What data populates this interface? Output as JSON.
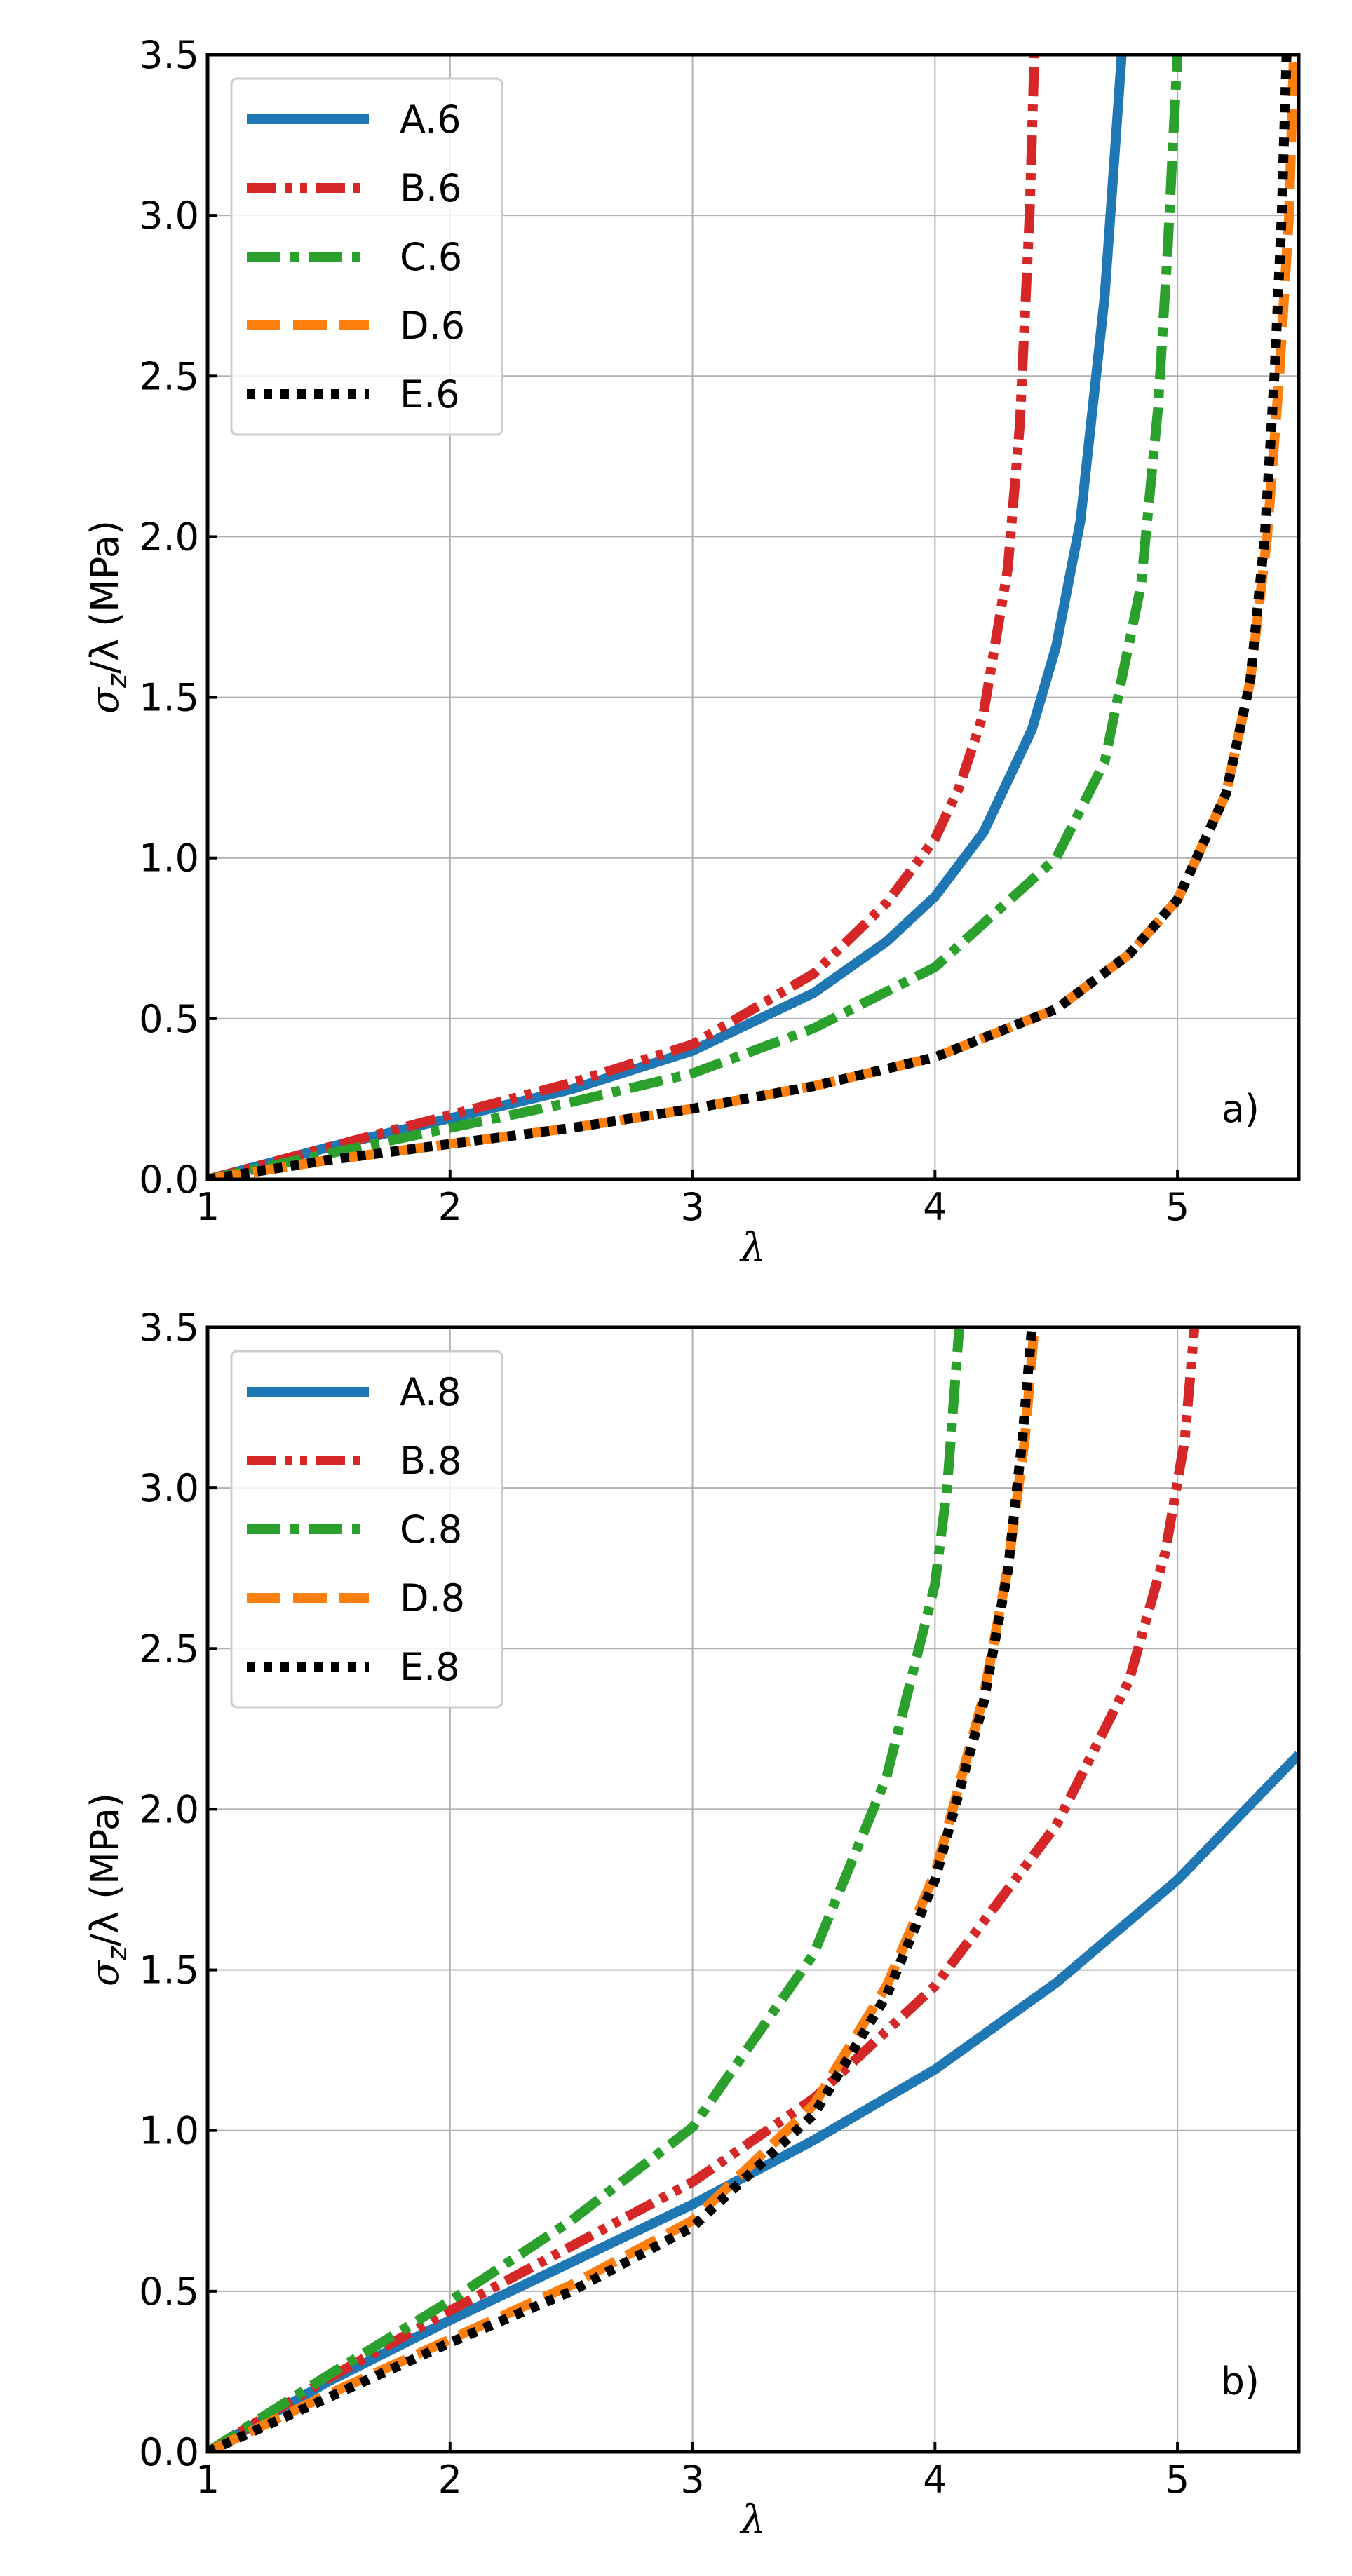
{
  "chart_data": [
    {
      "type": "line",
      "panel_label": "a)",
      "xlabel": "λ",
      "ylabel": "σ_z/λ (MPa)",
      "ylabel_parts": {
        "sigma": "σ",
        "sub": "z",
        "rest": "/λ (MPa)"
      },
      "xlim": [
        1,
        5.5
      ],
      "ylim": [
        0,
        3.5
      ],
      "xticks": [
        "1",
        "2",
        "3",
        "4",
        "5"
      ],
      "xtick_values": [
        1,
        2,
        3,
        4,
        5
      ],
      "yticks": [
        "0.0",
        "0.5",
        "1.0",
        "1.5",
        "2.0",
        "2.5",
        "3.0",
        "3.5"
      ],
      "ytick_values": [
        0,
        0.5,
        1.0,
        1.5,
        2.0,
        2.5,
        3.0,
        3.5
      ],
      "grid": true,
      "legend_position": "top-left",
      "series": [
        {
          "name": "A.6",
          "color": "#1f77b4",
          "style": "solid",
          "x": [
            1.0,
            1.5,
            2.0,
            2.5,
            3.0,
            3.5,
            3.8,
            4.0,
            4.2,
            4.4,
            4.5,
            4.6,
            4.7,
            4.77
          ],
          "y": [
            0.0,
            0.1,
            0.19,
            0.28,
            0.4,
            0.58,
            0.74,
            0.88,
            1.08,
            1.4,
            1.66,
            2.05,
            2.75,
            3.5
          ]
        },
        {
          "name": "B.6",
          "color": "#d62728",
          "style": "dashdotdot",
          "x": [
            1.0,
            1.5,
            2.0,
            2.5,
            3.0,
            3.5,
            3.8,
            4.0,
            4.1,
            4.2,
            4.3,
            4.35,
            4.39,
            4.41
          ],
          "y": [
            0.0,
            0.1,
            0.2,
            0.3,
            0.42,
            0.64,
            0.86,
            1.06,
            1.22,
            1.45,
            1.9,
            2.35,
            3.0,
            3.5
          ]
        },
        {
          "name": "C.6",
          "color": "#2ca02c",
          "style": "dashdot",
          "x": [
            1.0,
            1.5,
            2.0,
            2.5,
            3.0,
            3.5,
            4.0,
            4.5,
            4.7,
            4.85,
            4.92,
            4.96,
            4.98,
            5.0
          ],
          "y": [
            0.0,
            0.08,
            0.16,
            0.24,
            0.33,
            0.47,
            0.66,
            1.0,
            1.3,
            1.85,
            2.4,
            2.9,
            3.2,
            3.5
          ]
        },
        {
          "name": "D.6",
          "color": "#ff7f0e",
          "style": "dashed",
          "x": [
            1.0,
            1.5,
            2.0,
            2.5,
            3.0,
            3.5,
            4.0,
            4.5,
            4.8,
            5.0,
            5.2,
            5.3,
            5.37,
            5.42,
            5.46,
            5.48
          ],
          "y": [
            0.0,
            0.06,
            0.11,
            0.16,
            0.22,
            0.29,
            0.38,
            0.53,
            0.7,
            0.87,
            1.2,
            1.55,
            2.0,
            2.5,
            3.0,
            3.5
          ]
        },
        {
          "name": "E.6",
          "color": "#000000",
          "style": "dotted",
          "x": [
            1.0,
            1.5,
            2.0,
            2.5,
            3.0,
            3.5,
            4.0,
            4.5,
            4.8,
            5.0,
            5.2,
            5.3,
            5.36,
            5.4,
            5.43,
            5.45
          ],
          "y": [
            0.0,
            0.06,
            0.11,
            0.16,
            0.22,
            0.29,
            0.38,
            0.53,
            0.7,
            0.87,
            1.2,
            1.55,
            2.0,
            2.5,
            3.0,
            3.5
          ]
        }
      ]
    },
    {
      "type": "line",
      "panel_label": "b)",
      "xlabel": "λ",
      "ylabel": "σ_z/λ (MPa)",
      "ylabel_parts": {
        "sigma": "σ",
        "sub": "z",
        "rest": "/λ (MPa)"
      },
      "xlim": [
        1,
        5.5
      ],
      "ylim": [
        0,
        3.5
      ],
      "xticks": [
        "1",
        "2",
        "3",
        "4",
        "5"
      ],
      "xtick_values": [
        1,
        2,
        3,
        4,
        5
      ],
      "yticks": [
        "0.0",
        "0.5",
        "1.0",
        "1.5",
        "2.0",
        "2.5",
        "3.0",
        "3.5"
      ],
      "ytick_values": [
        0,
        0.5,
        1.0,
        1.5,
        2.0,
        2.5,
        3.0,
        3.5
      ],
      "grid": true,
      "legend_position": "top-left",
      "series": [
        {
          "name": "A.8",
          "color": "#1f77b4",
          "style": "solid",
          "x": [
            1.0,
            1.5,
            2.0,
            2.5,
            3.0,
            3.5,
            4.0,
            4.5,
            5.0,
            5.5
          ],
          "y": [
            0.0,
            0.22,
            0.41,
            0.59,
            0.77,
            0.97,
            1.19,
            1.46,
            1.78,
            2.17
          ]
        },
        {
          "name": "B.8",
          "color": "#d62728",
          "style": "dashdotdot",
          "x": [
            1.0,
            1.5,
            2.0,
            2.5,
            3.0,
            3.5,
            4.0,
            4.5,
            4.8,
            4.95,
            5.03,
            5.07
          ],
          "y": [
            0.0,
            0.23,
            0.44,
            0.64,
            0.84,
            1.1,
            1.45,
            1.95,
            2.4,
            2.8,
            3.15,
            3.5
          ]
        },
        {
          "name": "C.8",
          "color": "#2ca02c",
          "style": "dashdot",
          "x": [
            1.0,
            1.5,
            2.0,
            2.5,
            3.0,
            3.5,
            3.8,
            4.0,
            4.05,
            4.08,
            4.1
          ],
          "y": [
            0.0,
            0.24,
            0.47,
            0.72,
            1.01,
            1.55,
            2.1,
            2.7,
            3.0,
            3.3,
            3.5
          ]
        },
        {
          "name": "D.8",
          "color": "#ff7f0e",
          "style": "dashed",
          "x": [
            1.0,
            1.5,
            2.0,
            2.5,
            3.0,
            3.5,
            3.8,
            4.0,
            4.2,
            4.3,
            4.37,
            4.41
          ],
          "y": [
            0.0,
            0.18,
            0.35,
            0.52,
            0.72,
            1.08,
            1.45,
            1.8,
            2.35,
            2.75,
            3.15,
            3.5
          ]
        },
        {
          "name": "E.8",
          "color": "#000000",
          "style": "dotted",
          "x": [
            1.0,
            1.5,
            2.0,
            2.5,
            3.0,
            3.5,
            3.8,
            4.0,
            4.2,
            4.3,
            4.36,
            4.4
          ],
          "y": [
            0.0,
            0.17,
            0.34,
            0.5,
            0.7,
            1.05,
            1.42,
            1.78,
            2.33,
            2.74,
            3.15,
            3.5
          ]
        }
      ]
    }
  ]
}
